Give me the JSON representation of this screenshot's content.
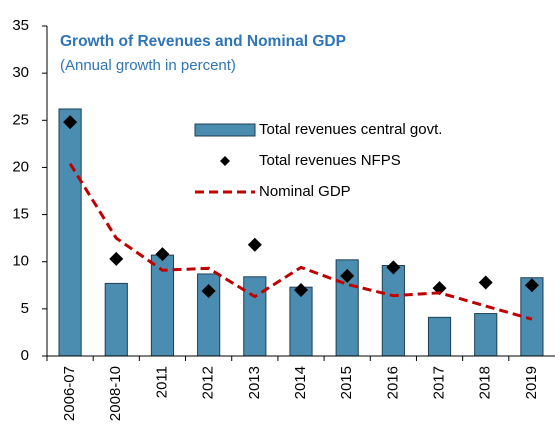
{
  "chart_data": {
    "type": "bar",
    "title": "Growth of Revenues and Nominal GDP",
    "subtitle": "(Annual growth in percent)",
    "categories": [
      "2006-07",
      "2008-10",
      "2011",
      "2012",
      "2013",
      "2014",
      "2015",
      "2016",
      "2017",
      "2018",
      "2019"
    ],
    "series": [
      {
        "name": "Total revenues central govt.",
        "type": "bar",
        "color": "#4a8db0",
        "values": [
          26.2,
          7.7,
          10.7,
          8.7,
          8.4,
          7.3,
          10.2,
          9.6,
          4.1,
          4.5,
          8.3
        ]
      },
      {
        "name": "Total revenues NFPS",
        "type": "scatter",
        "color": "#000000",
        "values": [
          24.8,
          10.3,
          10.8,
          6.9,
          11.8,
          7.0,
          8.5,
          9.4,
          7.2,
          7.8,
          7.5
        ]
      },
      {
        "name": "Nominal GDP",
        "type": "line",
        "color": "#c00000",
        "values": [
          20.4,
          12.5,
          9.1,
          9.3,
          6.3,
          9.4,
          7.6,
          6.4,
          6.7,
          5.3,
          3.9
        ]
      }
    ],
    "ylim": [
      0,
      35
    ],
    "yticks": [
      0,
      5,
      10,
      15,
      20,
      25,
      30,
      35
    ],
    "grid": false
  }
}
